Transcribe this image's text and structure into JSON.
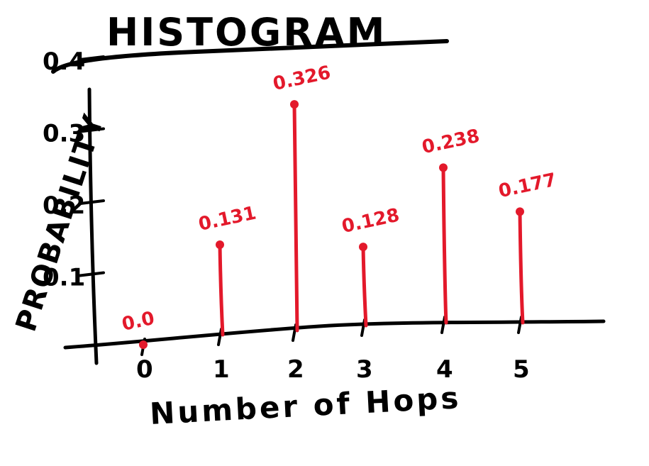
{
  "chart_data": {
    "type": "bar",
    "style": "stem",
    "title": "HISTOGRAM",
    "xlabel": "Number of Hops",
    "ylabel": "PROBABILITY",
    "categories": [
      "0",
      "1",
      "2",
      "3",
      "4",
      "5"
    ],
    "values": [
      0.0,
      0.131,
      0.326,
      0.128,
      0.238,
      0.177
    ],
    "data_labels": [
      "0.0",
      "0.131",
      "0.326",
      "0.128",
      "0.238",
      "0.177"
    ],
    "y_ticks": [
      "0.1",
      "0.2",
      "0.3",
      "0.4"
    ],
    "ylim": [
      0,
      0.4
    ],
    "grid": false,
    "colors": {
      "stems": "#e3192b",
      "axes": "#000000"
    }
  }
}
